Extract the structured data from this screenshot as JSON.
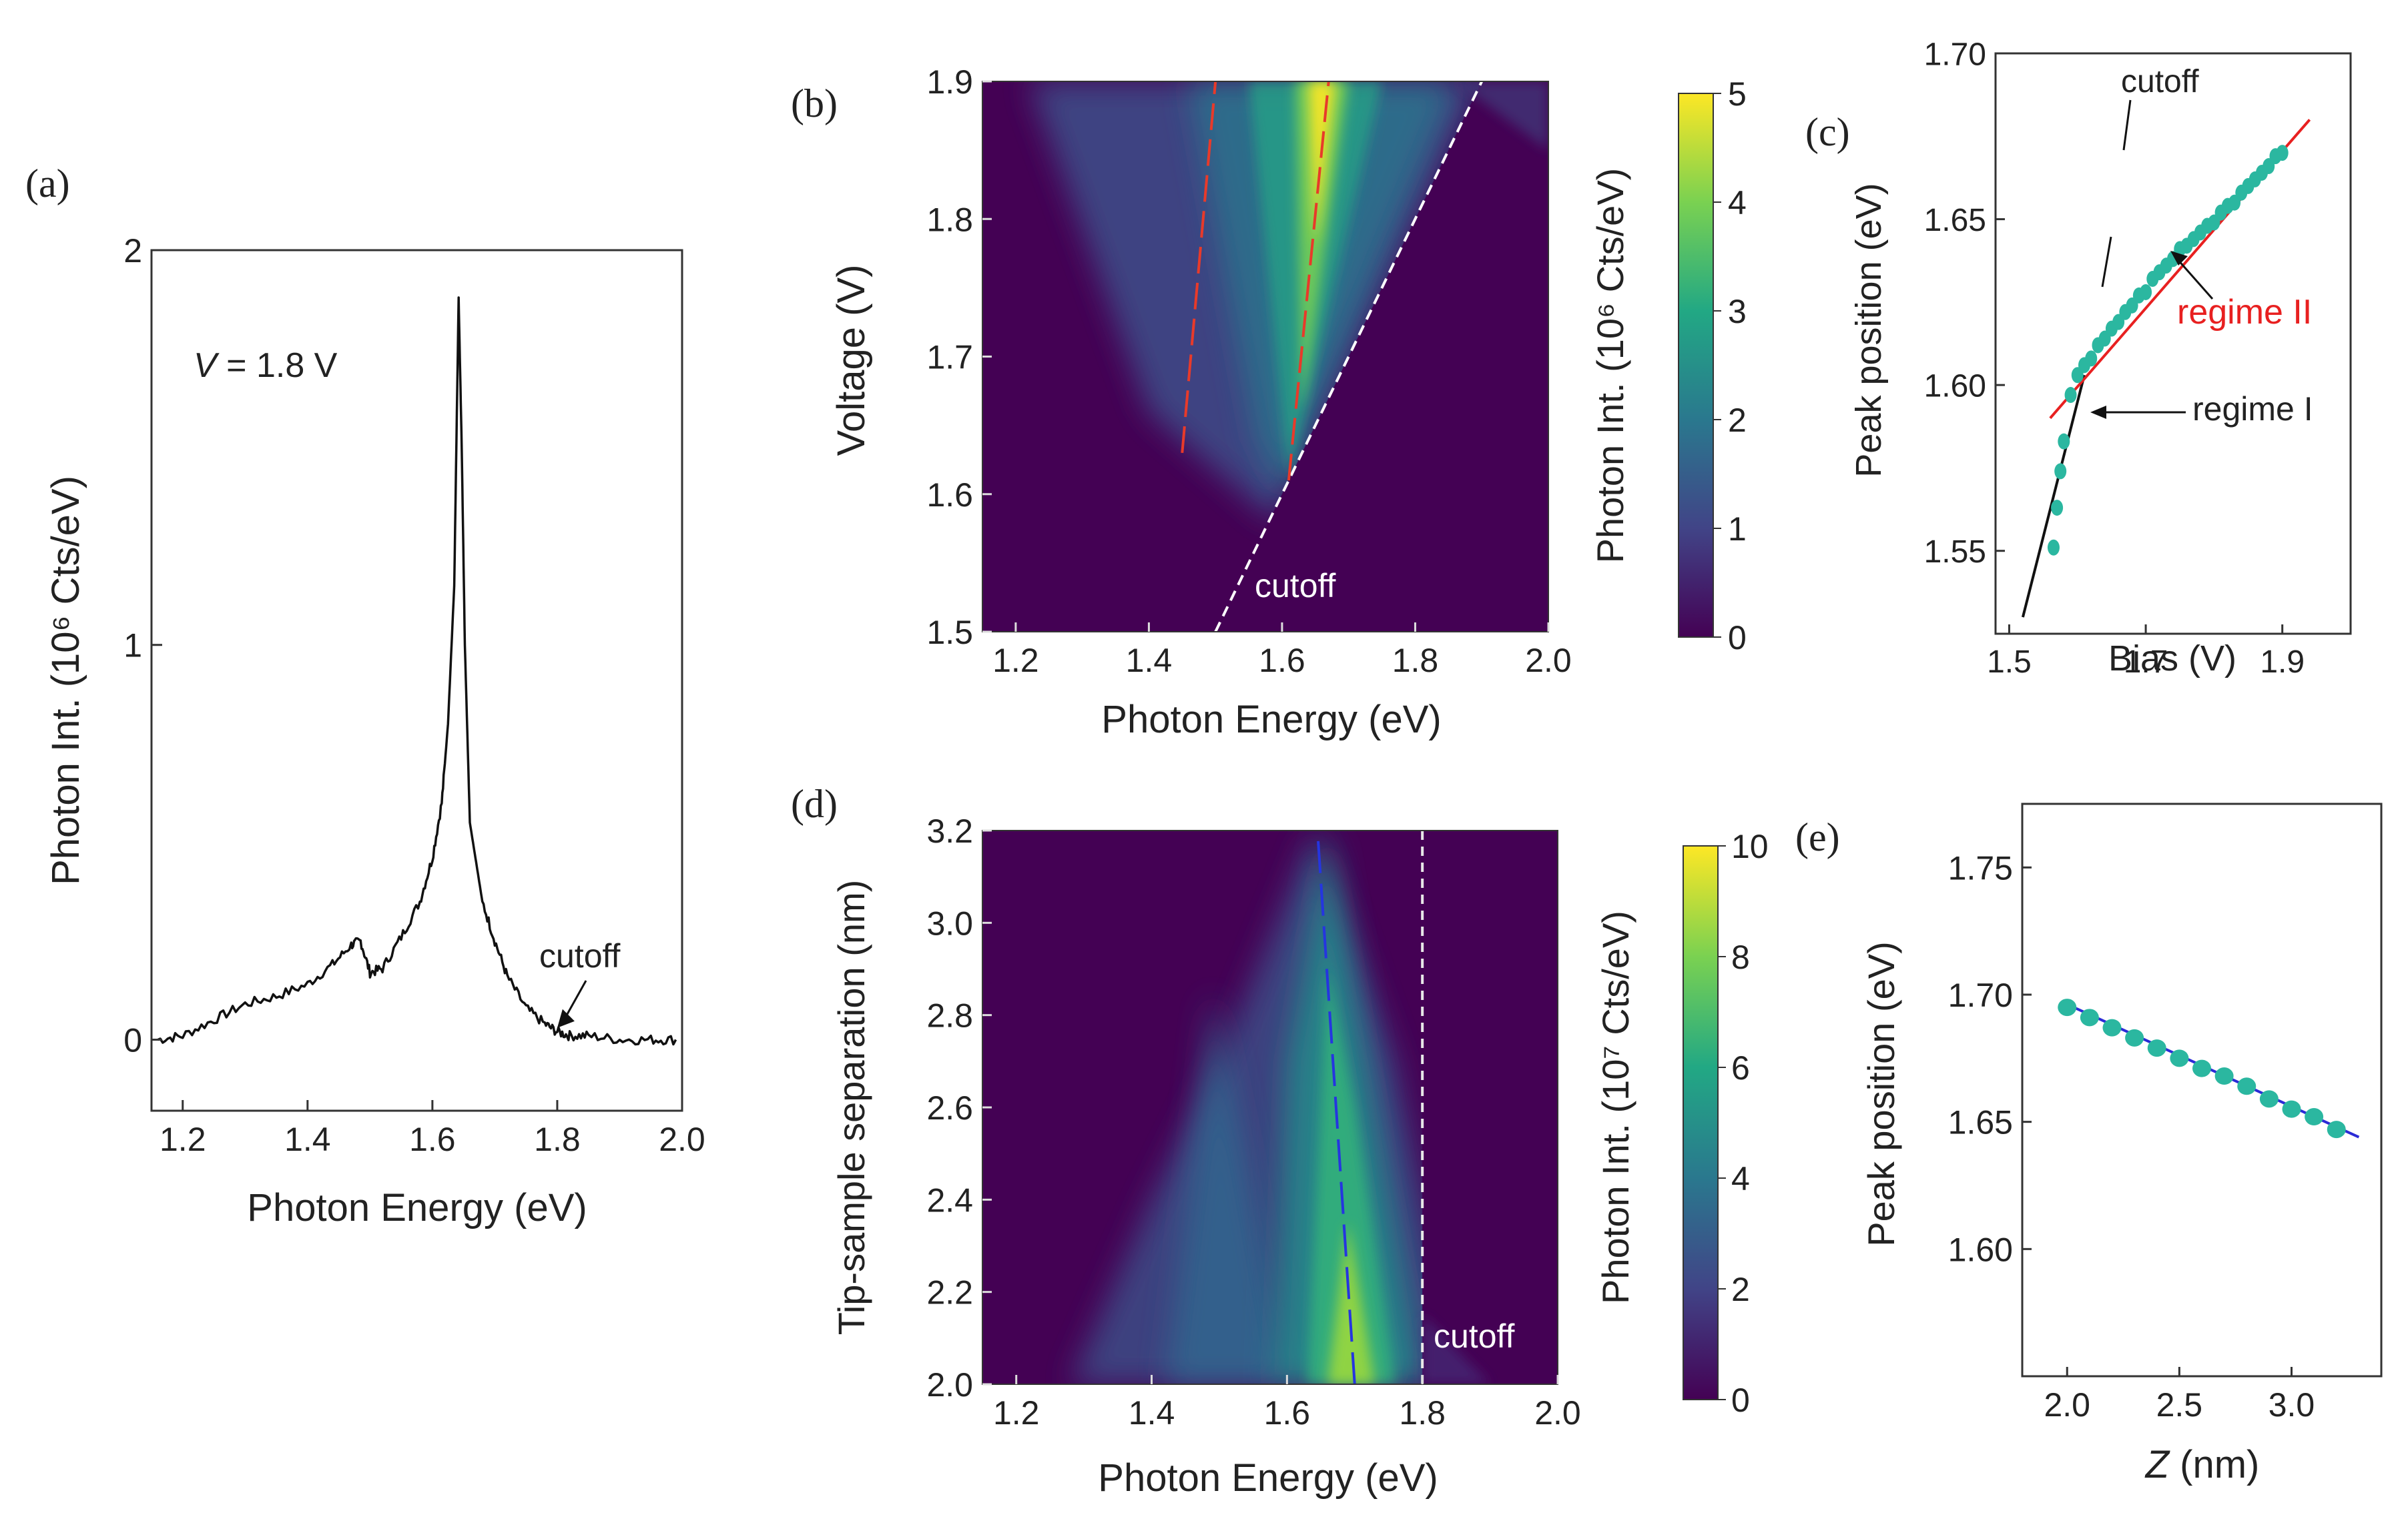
{
  "panels": [
    {
      "id": "a",
      "label": "(a)"
    },
    {
      "id": "b",
      "label": "(b)"
    },
    {
      "id": "c",
      "label": "(c)"
    },
    {
      "id": "d",
      "label": "(d)"
    },
    {
      "id": "e",
      "label": "(e)"
    }
  ],
  "chart_data": [
    {
      "panel": "(a)",
      "type": "line",
      "xlabel": "Photon Energy (eV)",
      "ylabel": "Photon Int. (10⁶ Cts/eV)",
      "xlim": [
        1.15,
        2.0
      ],
      "ylim": [
        -0.18,
        2.0
      ],
      "xticks": [
        1.2,
        1.4,
        1.6,
        1.8,
        2.0
      ],
      "xtick_labels": [
        "1.2",
        "1.4",
        "1.6",
        "1.8",
        "2.0"
      ],
      "yticks": [
        0,
        1,
        2
      ],
      "ytick_labels": [
        "0",
        "1",
        "2"
      ],
      "annotations": [
        {
          "text": "V = 1.8 V",
          "italic_prefix": "V",
          "rest": " = 1.8 V"
        },
        {
          "text": "cutoff",
          "arrow_to": [
            1.8,
            0.03
          ]
        }
      ],
      "series": [
        {
          "x": [
            1.16,
            1.2,
            1.25,
            1.3,
            1.35,
            1.4,
            1.44,
            1.47,
            1.485,
            1.5,
            1.52,
            1.55,
            1.58,
            1.6,
            1.615,
            1.625,
            1.635,
            1.642,
            1.647,
            1.652,
            1.66,
            1.67,
            1.68,
            1.7,
            1.72,
            1.75,
            1.78,
            1.8,
            1.82,
            1.85,
            1.9,
            1.95,
            1.99
          ],
          "y": [
            0.0,
            0.01,
            0.05,
            0.09,
            0.11,
            0.14,
            0.19,
            0.24,
            0.25,
            0.17,
            0.18,
            0.26,
            0.35,
            0.46,
            0.6,
            0.8,
            1.15,
            1.88,
            1.5,
            1.0,
            0.55,
            0.45,
            0.35,
            0.25,
            0.16,
            0.08,
            0.04,
            0.02,
            0.01,
            0.01,
            0.0,
            0.0,
            0.0
          ]
        }
      ]
    },
    {
      "panel": "(b)",
      "type": "heatmap",
      "xlabel": "Photon Energy (eV)",
      "ylabel": "Voltage (V)",
      "xlim": [
        1.15,
        2.0
      ],
      "ylim": [
        1.5,
        1.9
      ],
      "xticks": [
        1.2,
        1.4,
        1.6,
        1.8,
        2.0
      ],
      "xtick_labels": [
        "1.2",
        "1.4",
        "1.6",
        "1.8",
        "2.0"
      ],
      "yticks": [
        1.5,
        1.6,
        1.7,
        1.8,
        1.9
      ],
      "ytick_labels": [
        "1.5",
        "1.6",
        "1.7",
        "1.8",
        "1.9"
      ],
      "colorbar": {
        "label": "Photon Int. (10⁶ Cts/eV)",
        "range": [
          0,
          5
        ],
        "ticks": [
          "0",
          "1",
          "2",
          "3",
          "4",
          "5"
        ],
        "colormap": "viridis"
      },
      "annotations": [
        {
          "text": "cutoff"
        }
      ],
      "lines": [
        {
          "name": "cutoff",
          "style": "white-dashed",
          "x": [
            1.5,
            1.9
          ],
          "y": [
            1.5,
            1.9
          ]
        },
        {
          "style": "red-dashed",
          "x": [
            1.45,
            1.5
          ],
          "y": [
            1.63,
            1.9
          ]
        },
        {
          "style": "red-dashed",
          "x": [
            1.61,
            1.67
          ],
          "y": [
            1.61,
            1.9
          ]
        }
      ]
    },
    {
      "panel": "(c)",
      "type": "scatter",
      "xlabel": "Bias (V)",
      "ylabel": "Peak position (eV)",
      "xlim": [
        1.48,
        2.0
      ],
      "ylim": [
        1.525,
        1.7
      ],
      "xticks": [
        1.5,
        1.7,
        1.9
      ],
      "xtick_labels": [
        "1.5",
        "1.7",
        "1.9"
      ],
      "yticks": [
        1.55,
        1.6,
        1.65,
        1.7
      ],
      "ytick_labels": [
        "1.55",
        "1.60",
        "1.65",
        "1.70"
      ],
      "annotations": [
        {
          "text": "cutoff"
        },
        {
          "text": "regime II",
          "color": "#e82020"
        },
        {
          "text": "regime I"
        }
      ],
      "series": [
        {
          "x": [
            1.565,
            1.57,
            1.575,
            1.58,
            1.59,
            1.6,
            1.61,
            1.62,
            1.63,
            1.64,
            1.65,
            1.66,
            1.67,
            1.68,
            1.69,
            1.7,
            1.71,
            1.72,
            1.73,
            1.74,
            1.75,
            1.76,
            1.77,
            1.78,
            1.79,
            1.8,
            1.81,
            1.82,
            1.83,
            1.84,
            1.85,
            1.86,
            1.87,
            1.88,
            1.89,
            1.9
          ],
          "y": [
            1.551,
            1.563,
            1.574,
            1.583,
            1.597,
            1.603,
            1.606,
            1.608,
            1.612,
            1.614,
            1.617,
            1.619,
            1.622,
            1.624,
            1.627,
            1.628,
            1.632,
            1.634,
            1.636,
            1.638,
            1.641,
            1.642,
            1.644,
            1.646,
            1.648,
            1.649,
            1.652,
            1.654,
            1.655,
            1.658,
            1.66,
            1.662,
            1.664,
            1.666,
            1.669,
            1.67
          ]
        }
      ],
      "lines": [
        {
          "name": "regime I",
          "color": "#111111",
          "x": [
            1.52,
            1.61
          ],
          "y": [
            1.53,
            1.603
          ]
        },
        {
          "name": "regime II",
          "color": "#e82020",
          "x": [
            1.56,
            1.94
          ],
          "y": [
            1.59,
            1.68
          ]
        }
      ]
    },
    {
      "panel": "(d)",
      "type": "heatmap",
      "xlabel": "Photon Energy (eV)",
      "ylabel": "Tip-sample separation (nm)",
      "xlim": [
        1.15,
        2.0
      ],
      "ylim": [
        2.0,
        3.2
      ],
      "xticks": [
        1.2,
        1.4,
        1.6,
        1.8,
        2.0
      ],
      "xtick_labels": [
        "1.2",
        "1.4",
        "1.6",
        "1.8",
        "2.0"
      ],
      "yticks": [
        2.0,
        2.2,
        2.4,
        2.6,
        2.8,
        3.0,
        3.2
      ],
      "ytick_labels": [
        "2.0",
        "2.2",
        "2.4",
        "2.6",
        "2.8",
        "3.0",
        "3.2"
      ],
      "colorbar": {
        "label": "Photon Int. (10⁷ Cts/eV)",
        "range": [
          0,
          10
        ],
        "ticks": [
          "0",
          "2",
          "4",
          "6",
          "8",
          "10"
        ],
        "colormap": "viridis"
      },
      "annotations": [
        {
          "text": "cutoff"
        }
      ],
      "lines": [
        {
          "name": "cutoff",
          "style": "white-dashed",
          "x": [
            1.8,
            1.8
          ],
          "y": [
            2.0,
            3.2
          ]
        },
        {
          "style": "blue-dashed",
          "x": [
            1.7,
            1.645
          ],
          "y": [
            2.0,
            3.2
          ]
        }
      ]
    },
    {
      "panel": "(e)",
      "type": "scatter",
      "xlabel": "Z (nm)",
      "ylabel": "Peak position (eV)",
      "xlim": [
        1.8,
        3.4
      ],
      "ylim": [
        1.55,
        1.775
      ],
      "xticks": [
        2.0,
        2.5,
        3.0
      ],
      "xtick_labels": [
        "2.0",
        "2.5",
        "3.0"
      ],
      "yticks": [
        1.6,
        1.65,
        1.7,
        1.75
      ],
      "ytick_labels": [
        "1.60",
        "1.65",
        "1.70",
        "1.75"
      ],
      "series": [
        {
          "x": [
            2.0,
            2.1,
            2.2,
            2.3,
            2.4,
            2.5,
            2.6,
            2.7,
            2.8,
            2.9,
            3.0,
            3.1,
            3.2
          ],
          "y": [
            1.695,
            1.691,
            1.687,
            1.683,
            1.679,
            1.675,
            1.671,
            1.668,
            1.664,
            1.659,
            1.655,
            1.652,
            1.647
          ]
        }
      ],
      "lines": [
        {
          "color": "#2b2bd6",
          "x": [
            1.98,
            3.3
          ],
          "y": [
            1.697,
            1.644
          ]
        }
      ]
    }
  ]
}
